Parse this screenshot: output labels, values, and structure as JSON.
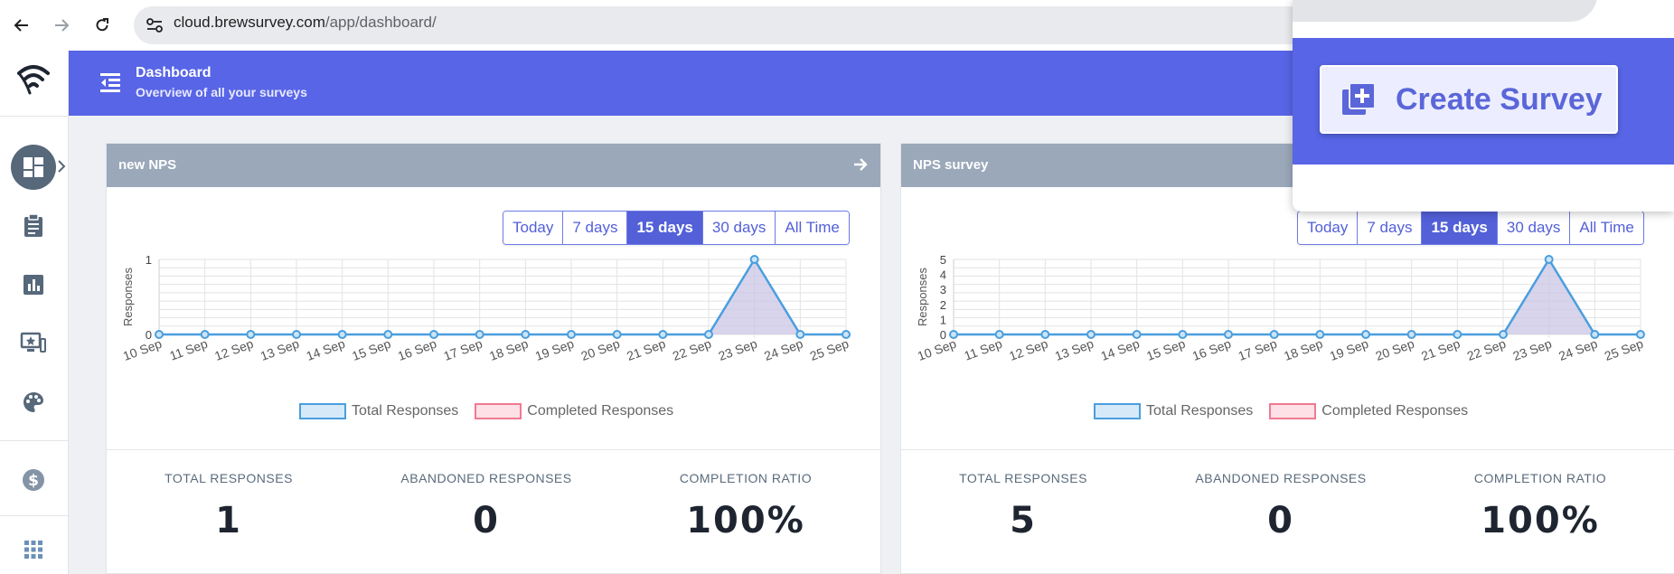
{
  "browser": {
    "url_host": "cloud.brewsurvey.com",
    "url_path": "/app/dashboard/"
  },
  "header": {
    "title": "Dashboard",
    "subtitle": "Overview of all your surveys"
  },
  "popup": {
    "create_label": "Create Survey"
  },
  "range_options": [
    "Today",
    "7 days",
    "15 days",
    "30 days",
    "All Time"
  ],
  "active_range": "15 days",
  "stats_labels": {
    "total": "TOTAL RESPONSES",
    "abandoned": "ABANDONED RESPONSES",
    "ratio": "COMPLETION RATIO"
  },
  "cards": [
    {
      "title": "new NPS",
      "total": "1",
      "abandoned": "0",
      "ratio": "100%"
    },
    {
      "title": "NPS survey",
      "total": "5",
      "abandoned": "0",
      "ratio": "100%"
    }
  ],
  "chart_data": [
    {
      "type": "area",
      "ylabel": "Responses",
      "categories": [
        "10 Sep",
        "11 Sep",
        "12 Sep",
        "13 Sep",
        "14 Sep",
        "15 Sep",
        "16 Sep",
        "17 Sep",
        "18 Sep",
        "19 Sep",
        "20 Sep",
        "21 Sep",
        "22 Sep",
        "23 Sep",
        "24 Sep",
        "25 Sep"
      ],
      "ylim": [
        0,
        1
      ],
      "yticks": [
        0,
        1
      ],
      "series": [
        {
          "name": "Total Responses",
          "values": [
            0,
            0,
            0,
            0,
            0,
            0,
            0,
            0,
            0,
            0,
            0,
            0,
            0,
            1,
            0,
            0
          ]
        },
        {
          "name": "Completed Responses",
          "values": [
            0,
            0,
            0,
            0,
            0,
            0,
            0,
            0,
            0,
            0,
            0,
            0,
            0,
            1,
            0,
            0
          ]
        }
      ],
      "legend": "bottom"
    },
    {
      "type": "area",
      "ylabel": "Responses",
      "categories": [
        "10 Sep",
        "11 Sep",
        "12 Sep",
        "13 Sep",
        "14 Sep",
        "15 Sep",
        "16 Sep",
        "17 Sep",
        "18 Sep",
        "19 Sep",
        "20 Sep",
        "21 Sep",
        "22 Sep",
        "23 Sep",
        "24 Sep",
        "25 Sep"
      ],
      "ylim": [
        0,
        5
      ],
      "yticks": [
        0,
        1,
        2,
        3,
        4,
        5
      ],
      "series": [
        {
          "name": "Total Responses",
          "values": [
            0,
            0,
            0,
            0,
            0,
            0,
            0,
            0,
            0,
            0,
            0,
            0,
            0,
            5,
            0,
            0
          ]
        },
        {
          "name": "Completed Responses",
          "values": [
            0,
            0,
            0,
            0,
            0,
            0,
            0,
            0,
            0,
            0,
            0,
            0,
            0,
            5,
            0,
            0
          ]
        }
      ],
      "legend": "bottom"
    }
  ],
  "colors": {
    "accent": "#5865e6",
    "total_line": "#4a9ede",
    "total_fill": "#d6e9f8",
    "completed_line": "#f07a92",
    "completed_fill": "#fde1e6",
    "area_fill": "#c9c6e6"
  }
}
